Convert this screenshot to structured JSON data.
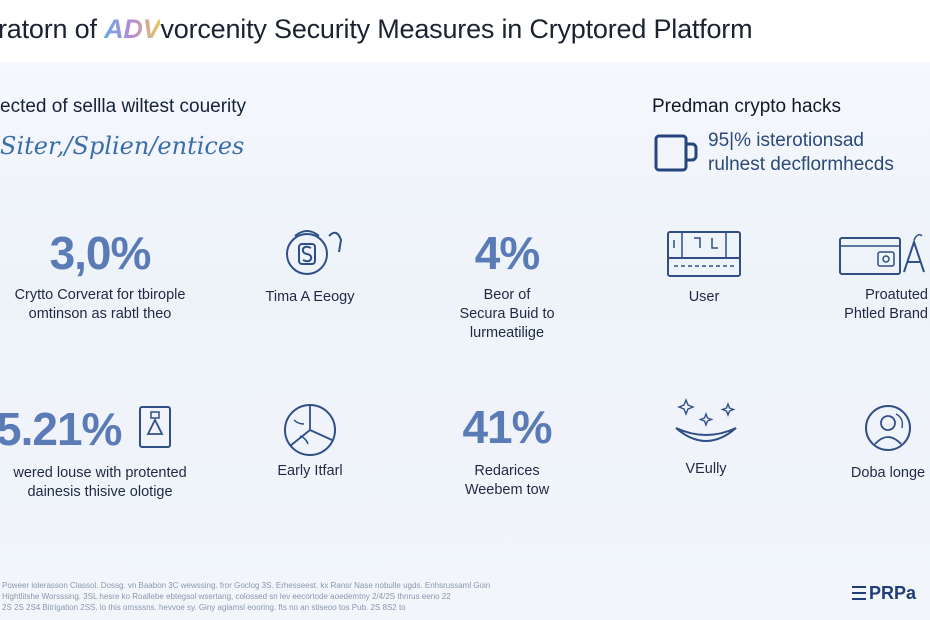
{
  "header": {
    "title_pre": "ratorn of ",
    "title_mark": "ADV",
    "title_post": "vorcenity Security Measures in Cryptored Platform"
  },
  "intro": {
    "subtitle": "ected of sellla wiltest couerity",
    "script_line": "Siter,/Splien/entices"
  },
  "sidebar": {
    "heading": "Predman crypto hacks",
    "icon": "mug-icon",
    "line1": "95|% isterotionsad",
    "line2": "rulnest decflormhecds"
  },
  "row1": [
    {
      "stat": "3,0%",
      "caption1": "Crytto Corverat for tbirople",
      "caption2": "omtinson as rabtl theo"
    },
    {
      "icon": "shield-badge-icon",
      "caption1": "Tima A Eeogy"
    },
    {
      "stat": "4%",
      "caption1": "Beor of",
      "caption2": "Secura Buid to",
      "caption3": "lurmeatilige"
    },
    {
      "icon": "server-rack-icon",
      "caption1": "User"
    },
    {
      "icon": "browser-window-icon",
      "caption1": "Proatuted",
      "caption2": "Phtled Brand"
    }
  ],
  "row2": [
    {
      "stat": "5.21%",
      "icon": "document-icon",
      "caption1": "wered louse with protented",
      "caption2": "dainesis thisive olotige"
    },
    {
      "icon": "pie-clock-icon",
      "caption1": "Early Itfarl"
    },
    {
      "stat": "41%",
      "caption1": "Redarices",
      "caption2": "Weebem tow"
    },
    {
      "icon": "sparkle-bowl-icon",
      "caption1": "VEully"
    },
    {
      "icon": "person-avatar-icon",
      "caption1": "Doba longe"
    }
  ],
  "footer": {
    "note1": "Poweer iolerasson Classol. Dossg. vn Baabon 3C wewssing. fror Goclog 3S. Erhesseest. kx Ransr Nase nobulle ugds. Enhsrussaml Goin",
    "note2": "Hightlitshe Worsssing. 3SL hesre ko Roallebe ebtegsol wsertang, colossed sn lev eecortode aoedemtny 2/4/2S thnrus eeno 22",
    "note3": "2S 2S 2S4 Bitrigation 2SS. lo this omsssns. hevvoe sy. Giny aglamsl eooring. fts no an stiseoo tos Pub. 2S 8S2 to",
    "logo": "PRPa"
  },
  "colors": {
    "accent": "#5b7bb6",
    "text": "#1e2a44",
    "icon_stroke": "#2f4f86"
  }
}
